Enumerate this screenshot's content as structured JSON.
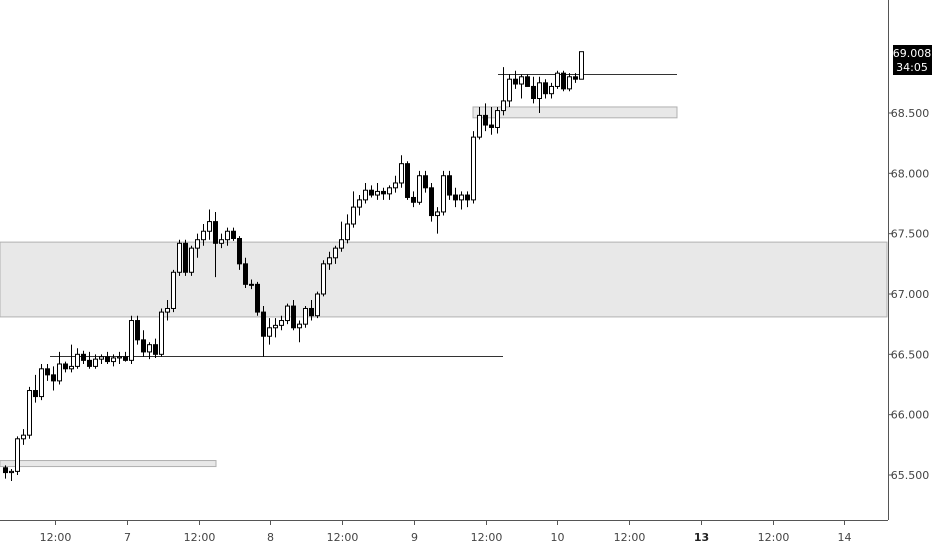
{
  "chart_data": {
    "type": "candlestick",
    "ylim": [
      65.25,
      69.3
    ],
    "y_ticks": [
      "65.500",
      "66.000",
      "66.500",
      "67.000",
      "67.500",
      "68.000",
      "68.500"
    ],
    "x_ticks": [
      {
        "label": "12:00",
        "bold": false
      },
      {
        "label": "7",
        "bold": false
      },
      {
        "label": "12:00",
        "bold": false
      },
      {
        "label": "8",
        "bold": false
      },
      {
        "label": "12:00",
        "bold": false
      },
      {
        "label": "9",
        "bold": false
      },
      {
        "label": "12:00",
        "bold": false
      },
      {
        "label": "10",
        "bold": false
      },
      {
        "label": "12:00",
        "bold": false
      },
      {
        "label": "13",
        "bold": true
      },
      {
        "label": "12:00",
        "bold": false
      },
      {
        "label": "14",
        "bold": false
      }
    ],
    "last_price": "69.008",
    "countdown": "34:05",
    "candles": [
      [
        65.56,
        65.58,
        65.47,
        65.52
      ],
      [
        65.52,
        65.55,
        65.45,
        65.53
      ],
      [
        65.53,
        65.82,
        65.5,
        65.8
      ],
      [
        65.8,
        65.88,
        65.75,
        65.83
      ],
      [
        65.83,
        66.23,
        65.8,
        66.2
      ],
      [
        66.2,
        66.33,
        66.1,
        66.15
      ],
      [
        66.15,
        66.42,
        66.12,
        66.38
      ],
      [
        66.38,
        66.42,
        66.28,
        66.33
      ],
      [
        66.33,
        66.4,
        66.2,
        66.28
      ],
      [
        66.28,
        66.52,
        66.25,
        66.42
      ],
      [
        66.42,
        66.44,
        66.35,
        66.38
      ],
      [
        66.38,
        66.58,
        66.35,
        66.4
      ],
      [
        66.4,
        66.55,
        66.38,
        66.5
      ],
      [
        66.5,
        66.53,
        66.42,
        66.45
      ],
      [
        66.45,
        66.52,
        66.38,
        66.4
      ],
      [
        66.4,
        66.5,
        66.38,
        66.46
      ],
      [
        66.46,
        66.5,
        66.42,
        66.48
      ],
      [
        66.48,
        66.52,
        66.42,
        66.44
      ],
      [
        66.44,
        66.5,
        66.4,
        66.47
      ],
      [
        66.47,
        66.52,
        66.42,
        66.48
      ],
      [
        66.48,
        66.52,
        66.44,
        66.45
      ],
      [
        66.45,
        66.82,
        66.42,
        66.78
      ],
      [
        66.78,
        66.82,
        66.58,
        66.62
      ],
      [
        66.62,
        66.7,
        66.48,
        66.52
      ],
      [
        66.52,
        66.6,
        66.46,
        66.58
      ],
      [
        66.58,
        66.63,
        66.47,
        66.5
      ],
      [
        66.5,
        66.88,
        66.48,
        66.85
      ],
      [
        66.85,
        66.95,
        66.78,
        66.88
      ],
      [
        66.88,
        67.2,
        66.85,
        67.18
      ],
      [
        67.18,
        67.45,
        67.15,
        67.42
      ],
      [
        67.42,
        67.45,
        67.15,
        67.18
      ],
      [
        67.18,
        67.4,
        67.15,
        67.38
      ],
      [
        67.38,
        67.5,
        67.3,
        67.45
      ],
      [
        67.45,
        67.58,
        67.4,
        67.52
      ],
      [
        67.52,
        67.7,
        67.45,
        67.6
      ],
      [
        67.6,
        67.68,
        67.14,
        67.42
      ],
      [
        67.42,
        67.5,
        67.38,
        67.45
      ],
      [
        67.45,
        67.55,
        67.4,
        67.52
      ],
      [
        67.52,
        67.55,
        67.44,
        67.46
      ],
      [
        67.46,
        67.48,
        67.2,
        67.25
      ],
      [
        67.25,
        67.3,
        67.05,
        67.08
      ],
      [
        67.08,
        67.12,
        67.04,
        67.08
      ],
      [
        67.08,
        67.1,
        66.82,
        66.85
      ],
      [
        66.85,
        66.9,
        66.48,
        66.65
      ],
      [
        66.65,
        66.8,
        66.58,
        66.72
      ],
      [
        66.72,
        66.8,
        66.64,
        66.74
      ],
      [
        66.74,
        66.82,
        66.7,
        66.78
      ],
      [
        66.78,
        66.92,
        66.75,
        66.9
      ],
      [
        66.9,
        66.95,
        66.7,
        66.72
      ],
      [
        66.72,
        66.78,
        66.6,
        66.75
      ],
      [
        66.75,
        66.9,
        66.72,
        66.88
      ],
      [
        66.88,
        66.95,
        66.78,
        66.82
      ],
      [
        66.82,
        67.02,
        66.8,
        67.0
      ],
      [
        67.0,
        67.28,
        66.98,
        67.25
      ],
      [
        67.25,
        67.35,
        67.2,
        67.3
      ],
      [
        67.3,
        67.4,
        67.25,
        67.38
      ],
      [
        67.38,
        67.6,
        67.35,
        67.45
      ],
      [
        67.45,
        67.66,
        67.42,
        67.58
      ],
      [
        67.58,
        67.85,
        67.55,
        67.72
      ],
      [
        67.72,
        67.82,
        67.65,
        67.78
      ],
      [
        67.78,
        67.92,
        67.75,
        67.86
      ],
      [
        67.86,
        67.9,
        67.8,
        67.82
      ],
      [
        67.82,
        67.92,
        67.78,
        67.85
      ],
      [
        67.85,
        67.88,
        67.78,
        67.83
      ],
      [
        67.83,
        67.9,
        67.78,
        67.88
      ],
      [
        67.88,
        67.98,
        67.84,
        67.92
      ],
      [
        67.92,
        68.15,
        67.88,
        68.08
      ],
      [
        68.08,
        68.1,
        67.78,
        67.8
      ],
      [
        67.8,
        67.85,
        67.72,
        67.76
      ],
      [
        67.76,
        68.02,
        67.74,
        67.98
      ],
      [
        67.98,
        68.02,
        67.84,
        67.88
      ],
      [
        67.88,
        67.92,
        67.6,
        67.65
      ],
      [
        67.65,
        67.72,
        67.5,
        67.68
      ],
      [
        67.68,
        68.02,
        67.65,
        67.98
      ],
      [
        67.98,
        68.02,
        67.78,
        67.82
      ],
      [
        67.82,
        67.88,
        67.72,
        67.78
      ],
      [
        67.78,
        67.85,
        67.7,
        67.82
      ],
      [
        67.82,
        67.85,
        67.72,
        67.78
      ],
      [
        67.78,
        68.35,
        67.75,
        68.3
      ],
      [
        68.3,
        68.55,
        68.28,
        68.48
      ],
      [
        68.48,
        68.58,
        68.35,
        68.4
      ],
      [
        68.4,
        68.55,
        68.32,
        68.38
      ],
      [
        68.38,
        68.55,
        68.33,
        68.52
      ],
      [
        68.52,
        68.88,
        68.48,
        68.6
      ],
      [
        68.6,
        68.82,
        68.55,
        68.78
      ],
      [
        68.78,
        68.85,
        68.7,
        68.74
      ],
      [
        68.74,
        68.82,
        68.62,
        68.8
      ],
      [
        68.8,
        68.82,
        68.72,
        68.72
      ],
      [
        68.72,
        68.8,
        68.58,
        68.62
      ],
      [
        68.62,
        68.8,
        68.5,
        68.75
      ],
      [
        68.75,
        68.78,
        68.62,
        68.66
      ],
      [
        68.66,
        68.75,
        68.62,
        68.72
      ],
      [
        68.72,
        68.85,
        68.7,
        68.83
      ],
      [
        68.83,
        68.85,
        68.68,
        68.7
      ],
      [
        68.7,
        68.83,
        68.68,
        68.8
      ],
      [
        68.8,
        68.83,
        68.75,
        68.78
      ],
      [
        68.78,
        69.01,
        68.78,
        69.008
      ]
    ],
    "zones": [
      {
        "from": 66.81,
        "to": 67.43,
        "x_from": 0,
        "x_to": 887
      },
      {
        "from": 68.46,
        "to": 68.55,
        "x_from": 473,
        "x_to": 677
      },
      {
        "from": 65.57,
        "to": 65.62,
        "x_from": 0,
        "x_to": 216
      }
    ],
    "levels": [
      {
        "price": 66.49,
        "x_from": 50,
        "x_to": 503
      },
      {
        "price": 68.82,
        "x_from": 498,
        "x_to": 677
      }
    ],
    "colors": {
      "candle": "#000000",
      "zone_fill": "#e8e8e8",
      "zone_stroke": "#b0b0b0",
      "level": "#333333",
      "axis": "#555555",
      "price_tag": "#000000"
    }
  }
}
